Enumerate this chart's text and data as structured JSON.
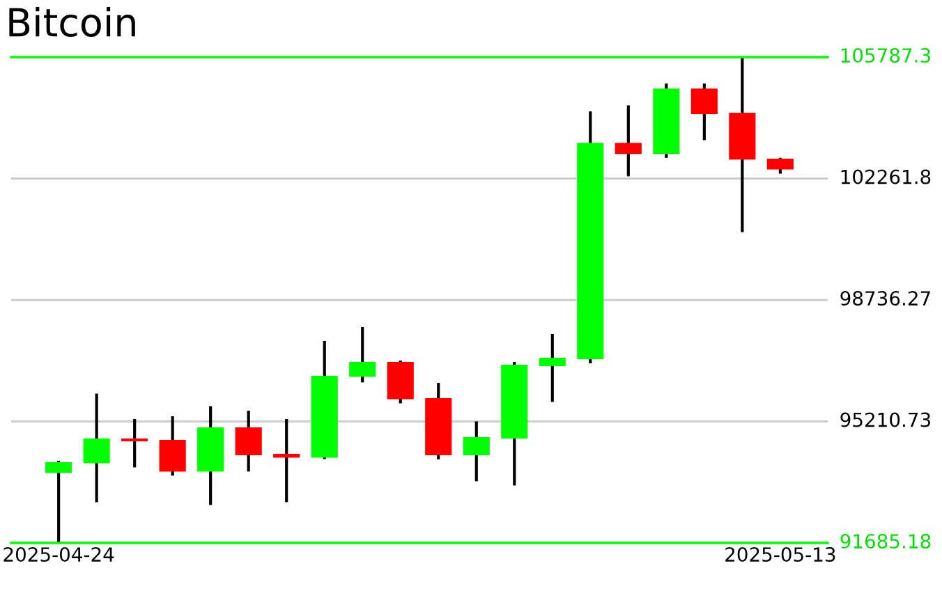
{
  "chart_data": {
    "type": "candlestick",
    "title": "Bitcoin",
    "x": [
      "2025-04-24",
      "2025-04-25",
      "2025-04-26",
      "2025-04-27",
      "2025-04-28",
      "2025-04-29",
      "2025-04-30",
      "2025-05-01",
      "2025-05-02",
      "2025-05-03",
      "2025-05-04",
      "2025-05-05",
      "2025-05-06",
      "2025-05-07",
      "2025-05-08",
      "2025-05-09",
      "2025-05-10",
      "2025-05-11",
      "2025-05-12",
      "2025-05-13"
    ],
    "ohlc": [
      [
        93717,
        94069,
        91685,
        94028
      ],
      [
        93998,
        96020,
        92869,
        94715
      ],
      [
        94715,
        95281,
        93879,
        94634
      ],
      [
        94674,
        95362,
        93637,
        93758
      ],
      [
        93758,
        95657,
        92788,
        95038
      ],
      [
        95038,
        95523,
        93758,
        94230
      ],
      [
        94271,
        95281,
        92869,
        94162
      ],
      [
        94162,
        97543,
        94122,
        96534
      ],
      [
        96507,
        97948,
        96344,
        96937
      ],
      [
        96937,
        96978,
        95737,
        95858
      ],
      [
        95888,
        96331,
        94109,
        94230
      ],
      [
        94230,
        95212,
        93475,
        94756
      ],
      [
        94715,
        96938,
        93354,
        96857
      ],
      [
        96817,
        97746,
        95778,
        97059
      ],
      [
        97019,
        104209,
        96898,
        103296
      ],
      [
        103296,
        104385,
        102326,
        102973
      ],
      [
        102973,
        105021,
        102862,
        104872
      ],
      [
        104872,
        105021,
        103376,
        104132
      ],
      [
        104172,
        105787,
        100706,
        102810
      ],
      [
        102836,
        102862,
        102403,
        102525
      ]
    ],
    "xlim": [
      "2025-04-22T18:00",
      "2025-05-14T06:00"
    ],
    "xticks": [
      "2025-04-24",
      "2025-05-13"
    ],
    "ylim": [
      91685.18,
      105787.3
    ],
    "yticks": [
      91685.18,
      95210.73,
      98736.27,
      102261.8,
      105787.3
    ],
    "grid": "y"
  }
}
